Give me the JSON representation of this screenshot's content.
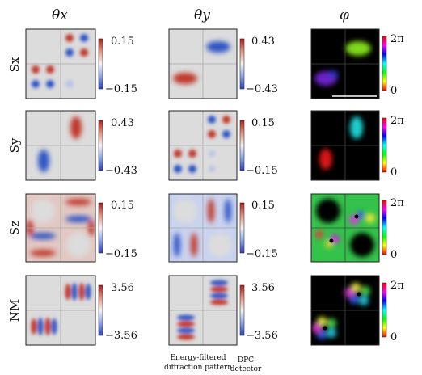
{
  "column_headers": [
    "θx",
    "θy",
    "φ"
  ],
  "row_labels": [
    "Sx",
    "Sy",
    "Sz",
    "NM"
  ],
  "colorbars": [
    {
      "theta_x": {
        "top": "0.15",
        "bottom": "−0.15"
      },
      "theta_y": {
        "top": "0.43",
        "bottom": "−0.43"
      },
      "phi": {
        "top": "2π",
        "bottom": "0"
      }
    },
    {
      "theta_x": {
        "top": "0.43",
        "bottom": "−0.43"
      },
      "theta_y": {
        "top": "0.15",
        "bottom": "−0.15"
      },
      "phi": {
        "top": "2π",
        "bottom": "0"
      }
    },
    {
      "theta_x": {
        "top": "0.15",
        "bottom": "−0.15"
      },
      "theta_y": {
        "top": "0.15",
        "bottom": "−0.15"
      },
      "phi": {
        "top": "2π",
        "bottom": "0"
      }
    },
    {
      "theta_x": {
        "top": "3.56",
        "bottom": "−3.56"
      },
      "theta_y": {
        "top": "3.56",
        "bottom": "−3.56"
      },
      "phi": {
        "top": "2π",
        "bottom": "0"
      }
    }
  ],
  "annotations": {
    "energy_filtered": [
      "Energy-filtered",
      "diffraction pattern"
    ],
    "dpc": [
      "DPC",
      "detector"
    ]
  }
}
